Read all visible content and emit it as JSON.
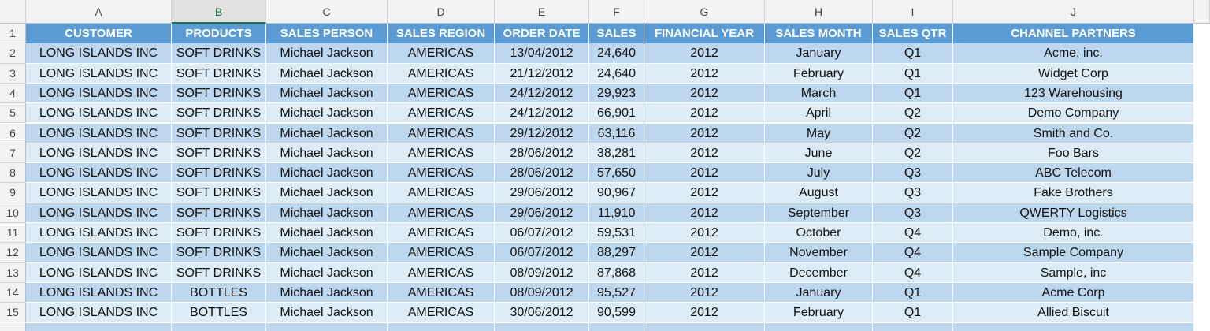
{
  "sheet": {
    "column_letters": [
      "A",
      "B",
      "C",
      "D",
      "E",
      "F",
      "G",
      "H",
      "I",
      "J"
    ],
    "row_numbers": [
      "1",
      "2",
      "3",
      "4",
      "5",
      "6",
      "7",
      "8",
      "9",
      "10",
      "11",
      "12",
      "13",
      "14",
      "15"
    ],
    "table": {
      "header": [
        "CUSTOMER",
        "PRODUCTS",
        "SALES PERSON",
        "SALES REGION",
        "ORDER DATE",
        "SALES",
        "FINANCIAL YEAR",
        "SALES MONTH",
        "SALES QTR",
        "CHANNEL PARTNERS"
      ],
      "rows": [
        [
          "LONG ISLANDS INC",
          "SOFT DRINKS",
          "Michael Jackson",
          "AMERICAS",
          "13/04/2012",
          "24,640",
          "2012",
          "January",
          "Q1",
          "Acme, inc."
        ],
        [
          "LONG ISLANDS INC",
          "SOFT DRINKS",
          "Michael Jackson",
          "AMERICAS",
          "21/12/2012",
          "24,640",
          "2012",
          "February",
          "Q1",
          "Widget Corp"
        ],
        [
          "LONG ISLANDS INC",
          "SOFT DRINKS",
          "Michael Jackson",
          "AMERICAS",
          "24/12/2012",
          "29,923",
          "2012",
          "March",
          "Q1",
          "123 Warehousing"
        ],
        [
          "LONG ISLANDS INC",
          "SOFT DRINKS",
          "Michael Jackson",
          "AMERICAS",
          "24/12/2012",
          "66,901",
          "2012",
          "April",
          "Q2",
          "Demo Company"
        ],
        [
          "LONG ISLANDS INC",
          "SOFT DRINKS",
          "Michael Jackson",
          "AMERICAS",
          "29/12/2012",
          "63,116",
          "2012",
          "May",
          "Q2",
          "Smith and Co."
        ],
        [
          "LONG ISLANDS INC",
          "SOFT DRINKS",
          "Michael Jackson",
          "AMERICAS",
          "28/06/2012",
          "38,281",
          "2012",
          "June",
          "Q2",
          "Foo Bars"
        ],
        [
          "LONG ISLANDS INC",
          "SOFT DRINKS",
          "Michael Jackson",
          "AMERICAS",
          "28/06/2012",
          "57,650",
          "2012",
          "July",
          "Q3",
          "ABC Telecom"
        ],
        [
          "LONG ISLANDS INC",
          "SOFT DRINKS",
          "Michael Jackson",
          "AMERICAS",
          "29/06/2012",
          "90,967",
          "2012",
          "August",
          "Q3",
          "Fake Brothers"
        ],
        [
          "LONG ISLANDS INC",
          "SOFT DRINKS",
          "Michael Jackson",
          "AMERICAS",
          "29/06/2012",
          "11,910",
          "2012",
          "September",
          "Q3",
          "QWERTY Logistics"
        ],
        [
          "LONG ISLANDS INC",
          "SOFT DRINKS",
          "Michael Jackson",
          "AMERICAS",
          "06/07/2012",
          "59,531",
          "2012",
          "October",
          "Q4",
          "Demo, inc."
        ],
        [
          "LONG ISLANDS INC",
          "SOFT DRINKS",
          "Michael Jackson",
          "AMERICAS",
          "06/07/2012",
          "88,297",
          "2012",
          "November",
          "Q4",
          "Sample Company"
        ],
        [
          "LONG ISLANDS INC",
          "SOFT DRINKS",
          "Michael Jackson",
          "AMERICAS",
          "08/09/2012",
          "87,868",
          "2012",
          "December",
          "Q4",
          "Sample, inc"
        ],
        [
          "LONG ISLANDS INC",
          "BOTTLES",
          "Michael Jackson",
          "AMERICAS",
          "08/09/2012",
          "95,527",
          "2012",
          "January",
          "Q1",
          "Acme Corp"
        ],
        [
          "LONG ISLANDS INC",
          "BOTTLES",
          "Michael Jackson",
          "AMERICAS",
          "30/06/2012",
          "90,599",
          "2012",
          "February",
          "Q1",
          "Allied Biscuit"
        ]
      ]
    }
  }
}
